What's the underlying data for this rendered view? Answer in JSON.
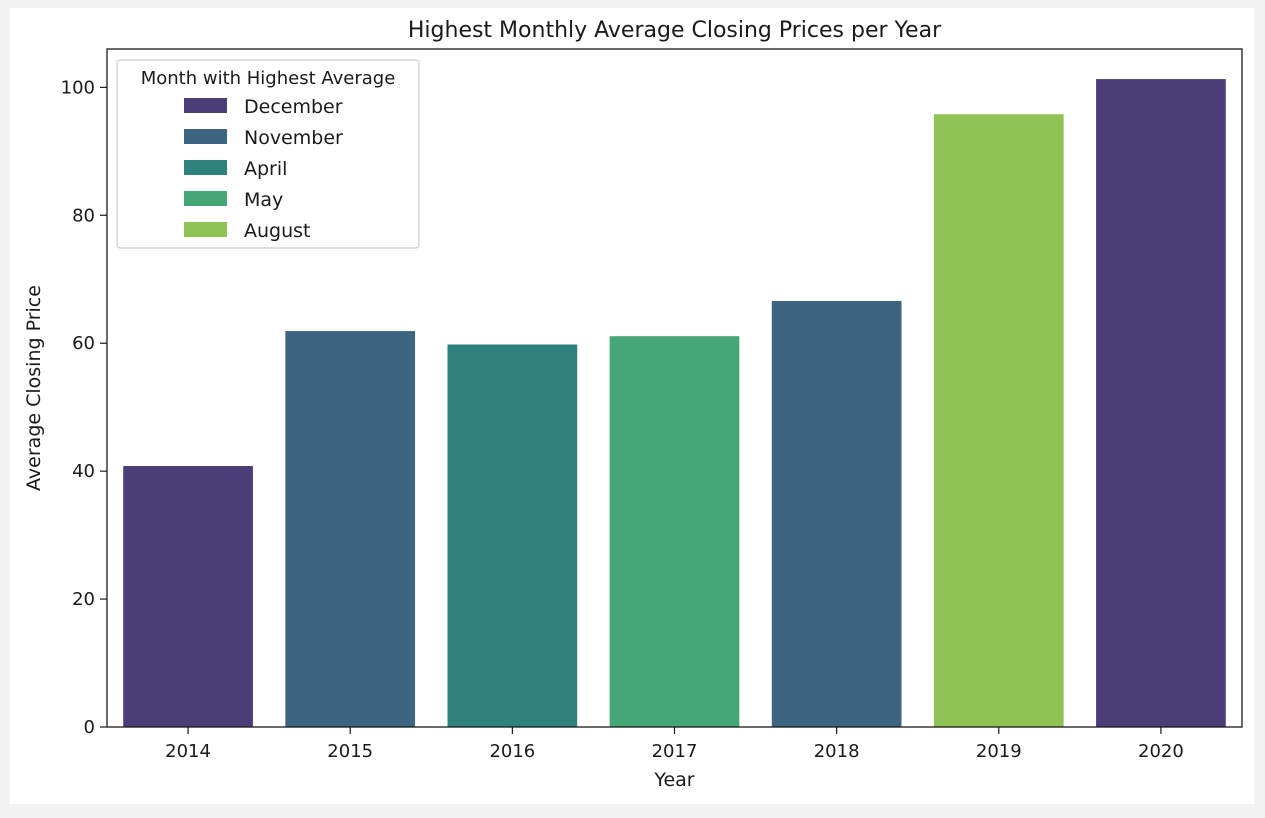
{
  "chart_data": {
    "type": "bar",
    "title": "Highest Monthly Average Closing Prices per Year",
    "xlabel": "Year",
    "ylabel": "Average Closing Price",
    "categories": [
      "2014",
      "2015",
      "2016",
      "2017",
      "2018",
      "2019",
      "2020"
    ],
    "values": [
      40.8,
      61.9,
      59.8,
      61.1,
      66.6,
      95.8,
      101.3
    ],
    "bar_months": [
      "December",
      "November",
      "April",
      "May",
      "November",
      "August",
      "December"
    ],
    "ylim": [
      0,
      106
    ],
    "yticks": [
      0,
      20,
      40,
      60,
      80,
      100
    ],
    "grid": false,
    "legend": {
      "title": "Month with Highest Average",
      "placement": "top-left",
      "entries": [
        {
          "label": "December",
          "color": "#4b3d78"
        },
        {
          "label": "November",
          "color": "#3d6480"
        },
        {
          "label": "April",
          "color": "#2e817c"
        },
        {
          "label": "May",
          "color": "#45a778"
        },
        {
          "label": "August",
          "color": "#8fc455"
        }
      ]
    }
  }
}
